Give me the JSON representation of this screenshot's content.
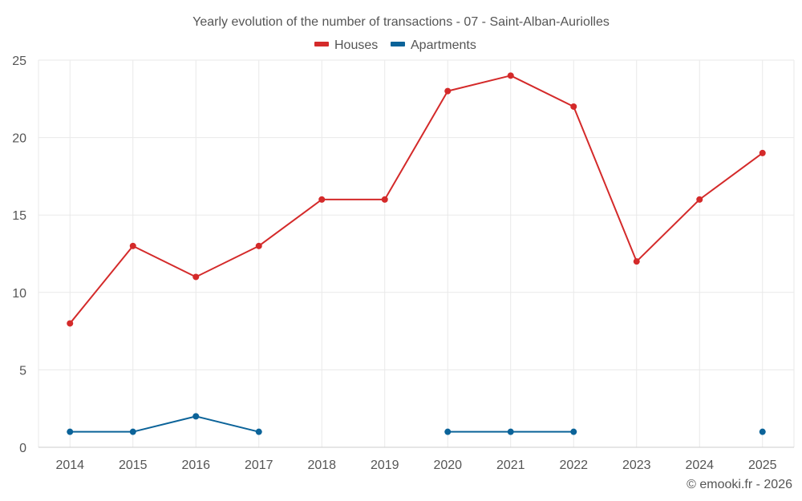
{
  "chart_data": {
    "type": "line",
    "title": "Yearly evolution of the number of transactions - 07 - Saint-Alban-Auriolles",
    "categories": [
      "2014",
      "2015",
      "2016",
      "2017",
      "2018",
      "2019",
      "2020",
      "2021",
      "2022",
      "2023",
      "2024",
      "2025"
    ],
    "series": [
      {
        "name": "Houses",
        "color": "#d42a2a",
        "values": [
          8,
          13,
          11,
          13,
          16,
          16,
          23,
          24,
          22,
          12,
          16,
          19
        ]
      },
      {
        "name": "Apartments",
        "color": "#0b6399",
        "values": [
          1,
          1,
          2,
          1,
          null,
          null,
          1,
          1,
          1,
          null,
          null,
          1
        ]
      }
    ],
    "y_ticks": [
      "0",
      "5",
      "10",
      "15",
      "20",
      "25"
    ],
    "ylim": [
      0,
      25
    ],
    "xlabel": "",
    "ylabel": "",
    "grid": true,
    "legend_position": "top-center"
  },
  "credit": "© emooki.fr - 2026"
}
